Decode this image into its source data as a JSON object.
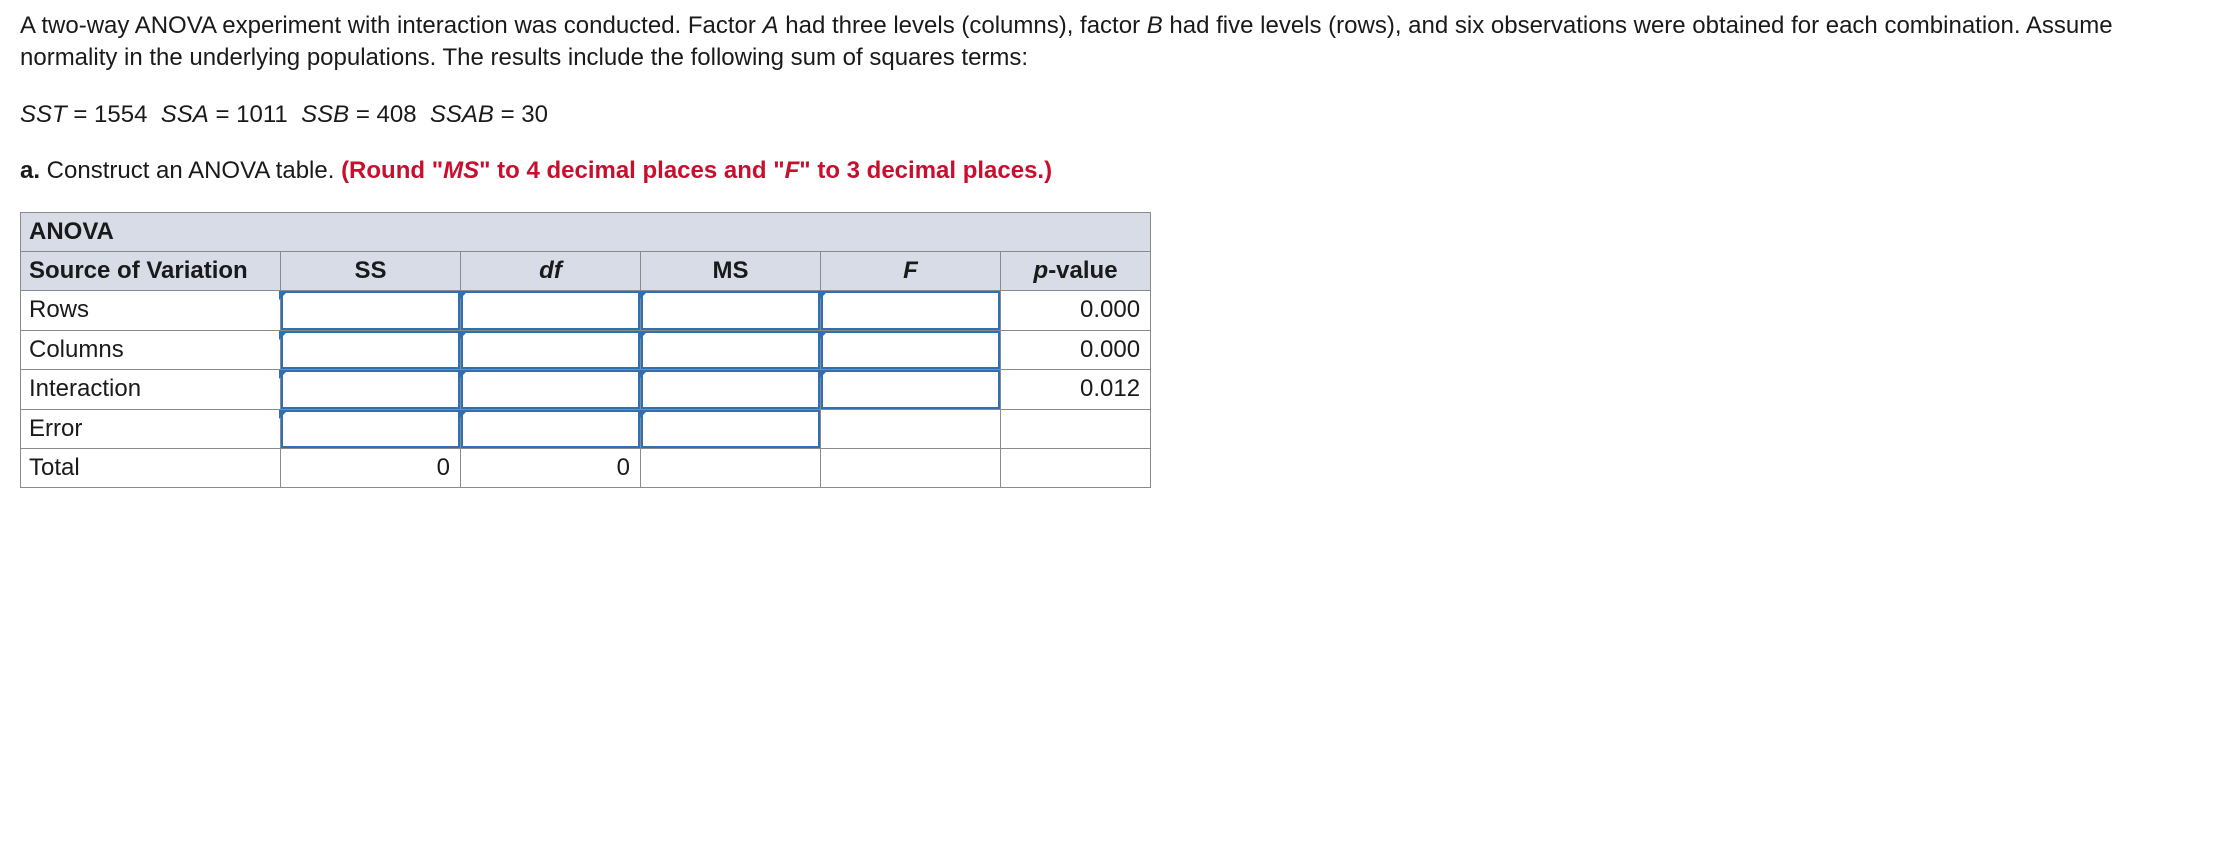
{
  "problem": {
    "paragraph_prefix": "A two-way ANOVA experiment with interaction was conducted. Factor ",
    "factor_a": "A",
    "paragraph_mid1": " had three levels (columns), factor ",
    "factor_b": "B",
    "paragraph_suffix": " had five levels (rows), and six observations were obtained for each combination. Assume normality in the underlying populations. The results include the following sum of squares terms:"
  },
  "formula": {
    "sst_label": "SST",
    "eq": " = ",
    "sst_val": "1554",
    "ssa_label": "SSA",
    "ssa_val": "1011",
    "ssb_label": "SSB",
    "ssb_val": "408",
    "ssab_label": "SSAB",
    "ssab_val": "30"
  },
  "part_a": {
    "label": "a.",
    "text": " Construct an ANOVA table. ",
    "hint_prefix": "(Round \"",
    "hint_ms": "MS",
    "hint_mid1": "\" to 4 decimal places and \"",
    "hint_f": "F",
    "hint_suffix": "\" to 3 decimal places.)"
  },
  "table": {
    "title": "ANOVA",
    "headers": {
      "source": "Source of Variation",
      "ss": "SS",
      "df": "df",
      "ms": "MS",
      "f": "F",
      "p": "p-value"
    },
    "rows": {
      "r1": {
        "label": "Rows",
        "p": "0.000"
      },
      "r2": {
        "label": "Columns",
        "p": "0.000"
      },
      "r3": {
        "label": "Interaction",
        "p": "0.012"
      },
      "r4": {
        "label": "Error"
      },
      "r5": {
        "label": "Total",
        "ss": "0",
        "df": "0"
      }
    }
  },
  "colors": {
    "header_bg": "#d8dce6",
    "border": "#8a8a8a",
    "input_border": "#2f6fb5",
    "hint_text": "#c8102e"
  }
}
